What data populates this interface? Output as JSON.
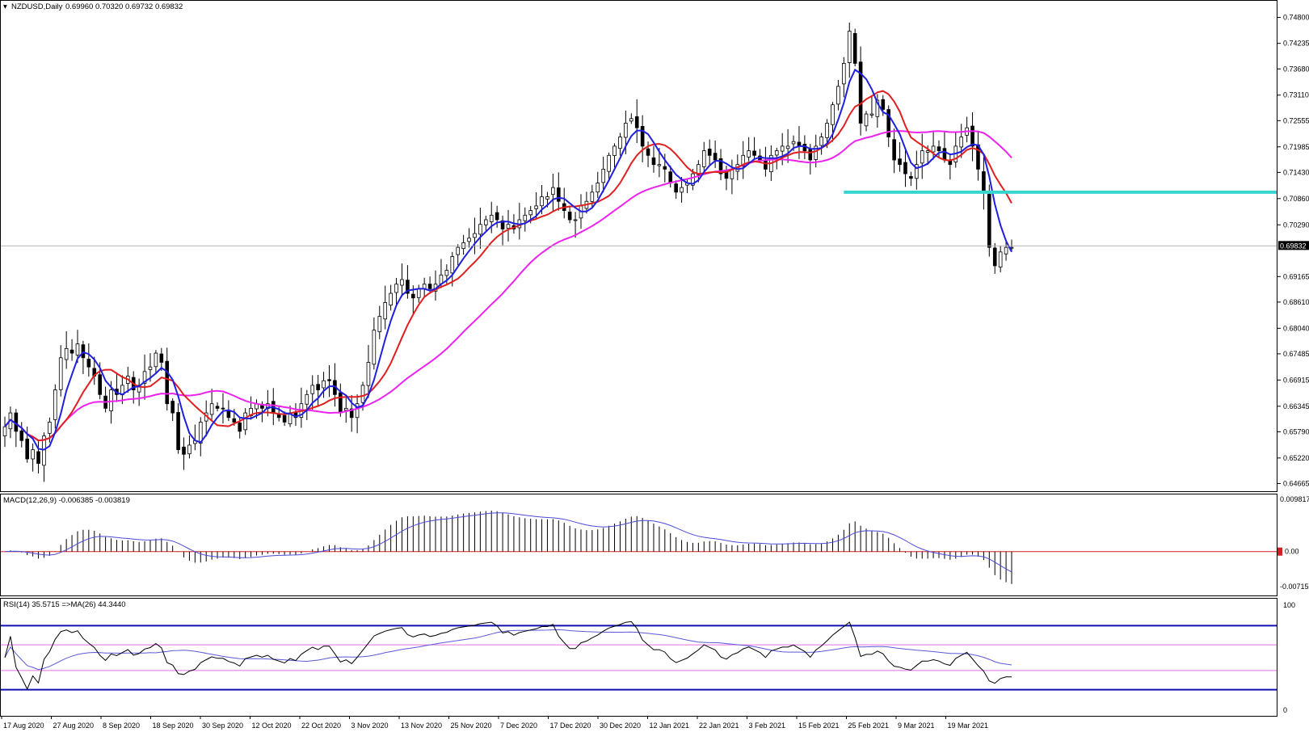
{
  "header": {
    "symbol_title": "NZDUSD,Daily",
    "ohlc": "0.69960 0.70320 0.69732 0.69832"
  },
  "colors": {
    "candle": "#000000",
    "ma_fast": "#1f1fe0",
    "ma_mid": "#e01f1f",
    "ma_slow": "#ee22ee",
    "support_line": "#35d6d0",
    "macd_signal": "#4b4bd8",
    "macd_zero": "#d22020",
    "rsi_line": "#000000",
    "rsi_ma": "#5a5ad8",
    "rsi_outer": "#1010b0",
    "rsi_inner": "#e070e0",
    "current_price_tag": "#000000"
  },
  "price_axis": {
    "ticks": [
      "0.74800",
      "0.74235",
      "0.73680",
      "0.73110",
      "0.72555",
      "0.71985",
      "0.71430",
      "0.70860",
      "0.70290",
      "0.69165",
      "0.68610",
      "0.68040",
      "0.67485",
      "0.66915",
      "0.66345",
      "0.65790",
      "0.65220",
      "0.64665"
    ],
    "current_price": "0.69832",
    "range": [
      0.6455,
      0.7502
    ]
  },
  "support_level": 0.71,
  "macd": {
    "label": "MACD(12,26,9) -0.006385 -0.003819",
    "axis_top": "0.009817",
    "axis_zero": "0.00",
    "axis_bottom": "-0.007157",
    "range": [
      -0.0078,
      0.0105
    ]
  },
  "rsi": {
    "label": "RSI(14) 35.5715  =>MA(26) 44.3440",
    "axis_top": "100",
    "axis_bottom": "0",
    "levels": {
      "outer_high": 80,
      "inner_high": 62,
      "inner_low": 38,
      "outer_low": 20
    }
  },
  "date_axis": {
    "labels": [
      "17 Aug 2020",
      "27 Aug 2020",
      "8 Sep 2020",
      "18 Sep 2020",
      "30 Sep 2020",
      "12 Oct 2020",
      "22 Oct 2020",
      "3 Nov 2020",
      "13 Nov 2020",
      "25 Nov 2020",
      "7 Dec 2020",
      "17 Dec 2020",
      "30 Dec 2020",
      "12 Jan 2021",
      "22 Jan 2021",
      "3 Feb 2021",
      "15 Feb 2021",
      "25 Feb 2021",
      "9 Mar 2021",
      "19 Mar 2021"
    ]
  },
  "chart_data": {
    "type": "candlestick",
    "symbol": "NZDUSD",
    "timeframe": "Daily",
    "closes": [
      0.659,
      0.662,
      0.658,
      0.656,
      0.652,
      0.654,
      0.651,
      0.657,
      0.66,
      0.667,
      0.674,
      0.676,
      0.675,
      0.677,
      0.674,
      0.672,
      0.67,
      0.666,
      0.663,
      0.667,
      0.666,
      0.668,
      0.67,
      0.667,
      0.668,
      0.671,
      0.672,
      0.675,
      0.673,
      0.664,
      0.662,
      0.654,
      0.653,
      0.655,
      0.656,
      0.66,
      0.662,
      0.664,
      0.663,
      0.663,
      0.661,
      0.66,
      0.658,
      0.662,
      0.663,
      0.664,
      0.663,
      0.664,
      0.662,
      0.661,
      0.66,
      0.662,
      0.661,
      0.664,
      0.666,
      0.668,
      0.667,
      0.669,
      0.669,
      0.666,
      0.662,
      0.663,
      0.661,
      0.664,
      0.668,
      0.673,
      0.68,
      0.683,
      0.686,
      0.688,
      0.69,
      0.691,
      0.688,
      0.687,
      0.689,
      0.69,
      0.689,
      0.69,
      0.692,
      0.693,
      0.696,
      0.698,
      0.699,
      0.7,
      0.701,
      0.703,
      0.704,
      0.705,
      0.704,
      0.702,
      0.703,
      0.702,
      0.704,
      0.705,
      0.706,
      0.707,
      0.709,
      0.709,
      0.711,
      0.708,
      0.706,
      0.704,
      0.704,
      0.707,
      0.708,
      0.71,
      0.712,
      0.715,
      0.718,
      0.72,
      0.722,
      0.725,
      0.726,
      0.724,
      0.72,
      0.718,
      0.716,
      0.716,
      0.715,
      0.712,
      0.71,
      0.711,
      0.712,
      0.714,
      0.716,
      0.719,
      0.718,
      0.717,
      0.714,
      0.713,
      0.715,
      0.716,
      0.718,
      0.719,
      0.718,
      0.717,
      0.715,
      0.718,
      0.719,
      0.72,
      0.72,
      0.721,
      0.72,
      0.719,
      0.717,
      0.72,
      0.722,
      0.725,
      0.729,
      0.733,
      0.738,
      0.745,
      0.738,
      0.725,
      0.727,
      0.727,
      0.73,
      0.728,
      0.722,
      0.717,
      0.716,
      0.714,
      0.713,
      0.716,
      0.719,
      0.719,
      0.72,
      0.719,
      0.717,
      0.716,
      0.72,
      0.722,
      0.724,
      0.72,
      0.715,
      0.71,
      0.698,
      0.694,
      0.697,
      0.698,
      0.698
    ],
    "ylim": [
      0.6455,
      0.7502
    ],
    "last_price": 0.69832
  }
}
